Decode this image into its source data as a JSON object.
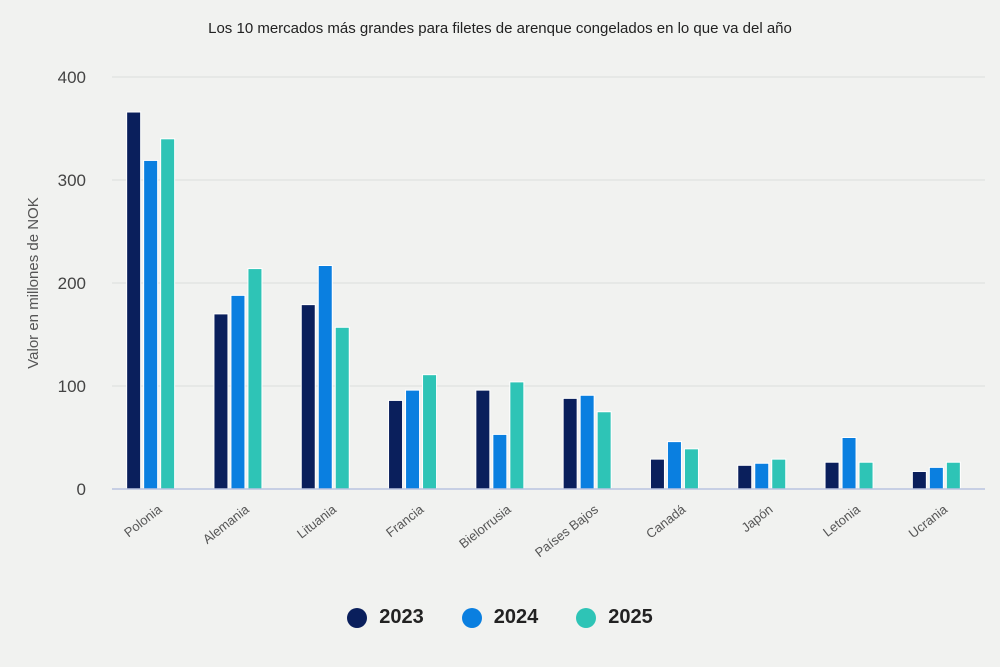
{
  "chart_data": {
    "type": "bar",
    "title": "Los 10 mercados más grandes para filetes de arenque congelados en lo que va del año",
    "xlabel": "",
    "ylabel": "Valor en millones de NOK",
    "ylim": [
      0,
      400
    ],
    "yticks": [
      0,
      100,
      200,
      300,
      400
    ],
    "grid": true,
    "legend_position": "bottom",
    "categories": [
      "Polonia",
      "Alemania",
      "Lituania",
      "Francia",
      "Bielorrusia",
      "Países Bajos",
      "Canadá",
      "Japón",
      "Letonia",
      "Ucrania"
    ],
    "series": [
      {
        "name": "2023",
        "color": "#0a1f5c",
        "values": [
          366,
          170,
          179,
          86,
          96,
          88,
          29,
          23,
          26,
          17
        ]
      },
      {
        "name": "2024",
        "color": "#0a7fe0",
        "values": [
          319,
          188,
          217,
          96,
          53,
          91,
          46,
          25,
          50,
          21
        ]
      },
      {
        "name": "2025",
        "color": "#2ec4b6",
        "values": [
          340,
          214,
          157,
          111,
          104,
          75,
          39,
          29,
          26,
          26
        ]
      }
    ]
  }
}
